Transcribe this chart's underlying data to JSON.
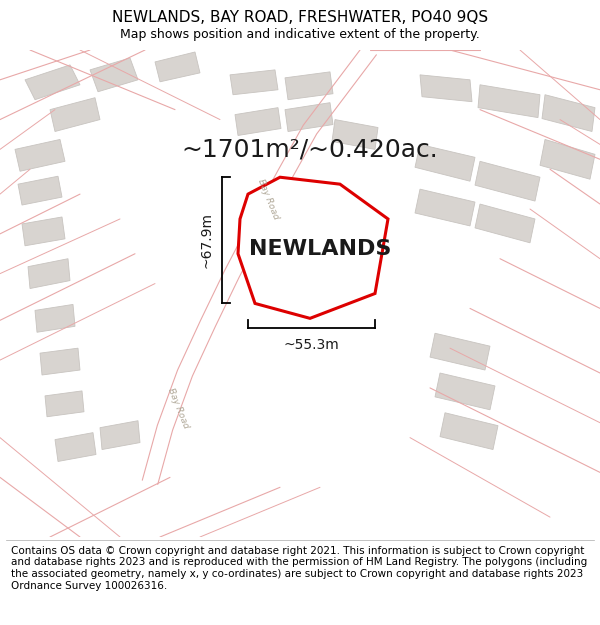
{
  "title": "NEWLANDS, BAY ROAD, FRESHWATER, PO40 9QS",
  "subtitle": "Map shows position and indicative extent of the property.",
  "area_label": "~1701m²/~0.420ac.",
  "property_name": "NEWLANDS",
  "dim_width": "~55.3m",
  "dim_height": "~67.9m",
  "footer": "Contains OS data © Crown copyright and database right 2021. This information is subject to Crown copyright and database rights 2023 and is reproduced with the permission of HM Land Registry. The polygons (including the associated geometry, namely x, y co-ordinates) are subject to Crown copyright and database rights 2023 Ordnance Survey 100026316.",
  "bg_color": "#f7f4f0",
  "road_line_color": "#e8a8a8",
  "building_fill": "#d8d4d0",
  "building_edge": "#c8c4c0",
  "property_fill": "#ffffff",
  "property_stroke": "#dd0000",
  "road_center_color": "#e0d8d0",
  "road_label_color": "#b0a898",
  "title_fontsize": 11,
  "subtitle_fontsize": 9,
  "footer_fontsize": 7.5,
  "area_fontsize": 18,
  "property_name_fontsize": 16,
  "dim_fontsize": 10
}
